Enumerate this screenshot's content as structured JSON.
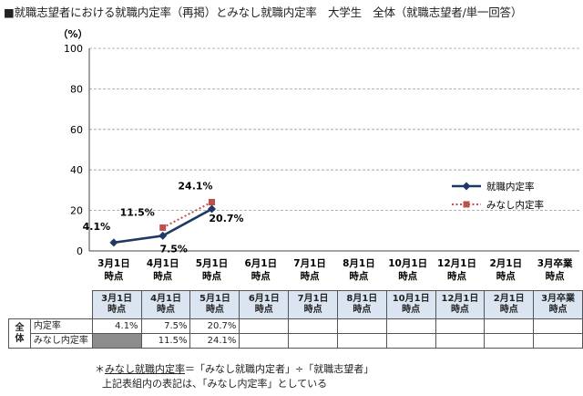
{
  "title": "■就職志望者における就職内定率（再掲）とみなし就職内定率　大学生　全体（就職志望者/単一回答）",
  "chart_data": {
    "type": "line",
    "y_unit": "（%）",
    "ylim": [
      0,
      100
    ],
    "yticks": [
      "0",
      "20",
      "40",
      "60",
      "80",
      "100"
    ],
    "grid": true,
    "legend_position": "right",
    "categories": [
      [
        "3月1日",
        "時点"
      ],
      [
        "4月1日",
        "時点"
      ],
      [
        "5月1日",
        "時点"
      ],
      [
        "6月1日",
        "時点"
      ],
      [
        "7月1日",
        "時点"
      ],
      [
        "8月1日",
        "時点"
      ],
      [
        "10月1日",
        "時点"
      ],
      [
        "12月1日",
        "時点"
      ],
      [
        "2月1日",
        "時点"
      ],
      [
        "3月卒業",
        "時点"
      ]
    ],
    "series": [
      {
        "name": "就職内定率",
        "color": "#1f3864",
        "marker": "diamond",
        "style": "solid",
        "values": [
          4.1,
          7.5,
          20.7,
          null,
          null,
          null,
          null,
          null,
          null,
          null
        ],
        "labels": [
          "4.1%",
          "7.5%",
          "20.7%"
        ]
      },
      {
        "name": "みなし内定率",
        "color": "#c0504d",
        "marker": "square",
        "style": "dotted",
        "values": [
          null,
          11.5,
          24.1,
          null,
          null,
          null,
          null,
          null,
          null,
          null
        ],
        "labels": [
          "",
          "11.5%",
          "24.1%"
        ]
      }
    ]
  },
  "table": {
    "group_label": "全体",
    "rows": [
      {
        "label": "内定率",
        "cells": [
          "4.1%",
          "7.5%",
          "20.7%",
          "",
          "",
          "",
          "",
          "",
          "",
          ""
        ]
      },
      {
        "label": "みなし内定率",
        "cells": [
          "",
          "11.5%",
          "24.1%",
          "",
          "",
          "",
          "",
          "",
          "",
          ""
        ]
      }
    ]
  },
  "note": {
    "star": "＊",
    "term": "みなし就職内定率",
    "formula": "＝「みなし就職内定者」÷「就職志望者」",
    "line2": "上記表組内の表記は、「みなし内定率」としている"
  }
}
